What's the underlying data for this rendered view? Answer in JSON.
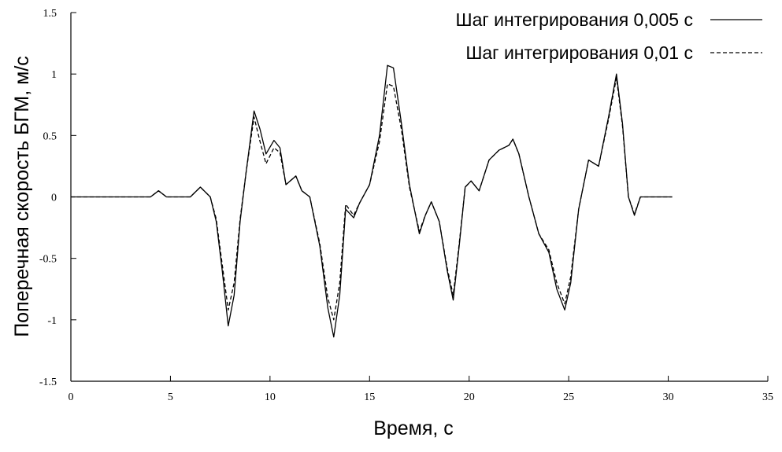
{
  "chart_data": {
    "type": "line",
    "x_label": "Время, с",
    "y_label": "Поперечная скорость БГМ, м/с",
    "x": [
      0,
      4,
      4.4,
      4.8,
      6,
      6.5,
      7,
      7.3,
      7.6,
      7.9,
      8.2,
      8.5,
      8.8,
      9.2,
      9.5,
      9.8,
      10.2,
      10.5,
      10.8,
      11.3,
      11.6,
      12,
      12.5,
      12.9,
      13.2,
      13.5,
      13.8,
      14.2,
      14.5,
      15,
      15.5,
      15.9,
      16.2,
      16.6,
      17,
      17.5,
      17.8,
      18.1,
      18.5,
      18.9,
      19.2,
      19.5,
      19.8,
      20.1,
      20.5,
      21,
      21.5,
      22,
      22.2,
      22.5,
      23,
      23.5,
      24,
      24.4,
      24.8,
      25.1,
      25.5,
      26,
      26.5,
      27,
      27.4,
      27.7,
      28,
      28.3,
      28.6,
      30.2
    ],
    "series": [
      {
        "name": "Шаг интегрирования 0,005 с",
        "color": "#000000",
        "dash": "solid",
        "values": [
          0,
          0,
          0.05,
          0,
          0,
          0.08,
          0,
          -0.2,
          -0.6,
          -1.05,
          -0.8,
          -0.2,
          0.2,
          0.7,
          0.55,
          0.35,
          0.46,
          0.4,
          0.1,
          0.17,
          0.05,
          0,
          -0.4,
          -0.9,
          -1.14,
          -0.8,
          -0.1,
          -0.17,
          -0.05,
          0.1,
          0.5,
          1.07,
          1.05,
          0.6,
          0.1,
          -0.3,
          -0.15,
          -0.04,
          -0.2,
          -0.6,
          -0.84,
          -0.4,
          0.08,
          0.13,
          0.05,
          0.3,
          0.38,
          0.42,
          0.47,
          0.35,
          0,
          -0.3,
          -0.45,
          -0.75,
          -0.92,
          -0.7,
          -0.1,
          0.3,
          0.25,
          0.65,
          1.0,
          0.6,
          0,
          -0.15,
          0,
          0
        ]
      },
      {
        "name": "Шаг интегрирования 0,01 с",
        "color": "#000000",
        "dash": "dashed",
        "values": [
          0,
          0,
          0.05,
          0,
          0,
          0.08,
          0,
          -0.18,
          -0.55,
          -0.92,
          -0.7,
          -0.18,
          0.2,
          0.65,
          0.45,
          0.27,
          0.4,
          0.36,
          0.1,
          0.17,
          0.05,
          0,
          -0.38,
          -0.82,
          -1.0,
          -0.7,
          -0.06,
          -0.15,
          -0.05,
          0.1,
          0.45,
          0.92,
          0.9,
          0.55,
          0.08,
          -0.28,
          -0.15,
          -0.04,
          -0.2,
          -0.58,
          -0.8,
          -0.38,
          0.08,
          0.13,
          0.05,
          0.3,
          0.38,
          0.42,
          0.47,
          0.35,
          0,
          -0.3,
          -0.43,
          -0.7,
          -0.87,
          -0.65,
          -0.1,
          0.3,
          0.25,
          0.63,
          0.97,
          0.58,
          0,
          -0.14,
          0,
          0
        ]
      }
    ],
    "xlim": [
      0,
      35
    ],
    "xticks": [
      0,
      5,
      10,
      15,
      20,
      25,
      30,
      35
    ],
    "ylim": [
      -1.5,
      1.5
    ],
    "yticks": [
      -1.5,
      -1,
      -0.5,
      0,
      0.5,
      1,
      1.5
    ],
    "legend": "upper right",
    "grid": false
  }
}
